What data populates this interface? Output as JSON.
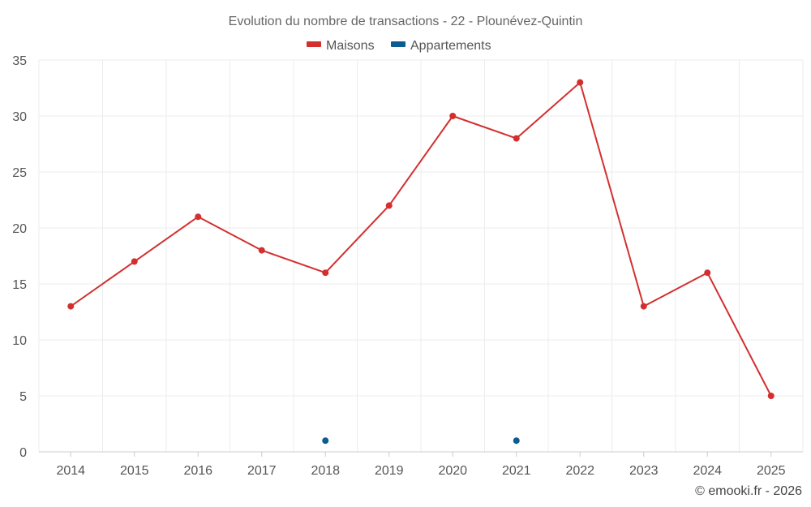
{
  "chart_data": {
    "type": "line",
    "title": "Evolution du nombre de transactions - 22 - Plounévez-Quintin",
    "categories": [
      "2014",
      "2015",
      "2016",
      "2017",
      "2018",
      "2019",
      "2020",
      "2021",
      "2022",
      "2023",
      "2024",
      "2025"
    ],
    "series": [
      {
        "name": "Maisons",
        "color": "#d32f2f",
        "values": [
          13,
          17,
          21,
          18,
          16,
          22,
          30,
          28,
          33,
          13,
          16,
          5
        ]
      },
      {
        "name": "Appartements",
        "color": "#0d5c91",
        "values": [
          null,
          null,
          null,
          null,
          1,
          null,
          null,
          1,
          null,
          null,
          null,
          null
        ]
      }
    ],
    "ylim": [
      0,
      35
    ],
    "yticks": [
      0,
      5,
      10,
      15,
      20,
      25,
      30,
      35
    ],
    "grid": true,
    "legend": "top-center",
    "xlabel": "",
    "ylabel": ""
  },
  "credit": "© emooki.fr - 2026"
}
